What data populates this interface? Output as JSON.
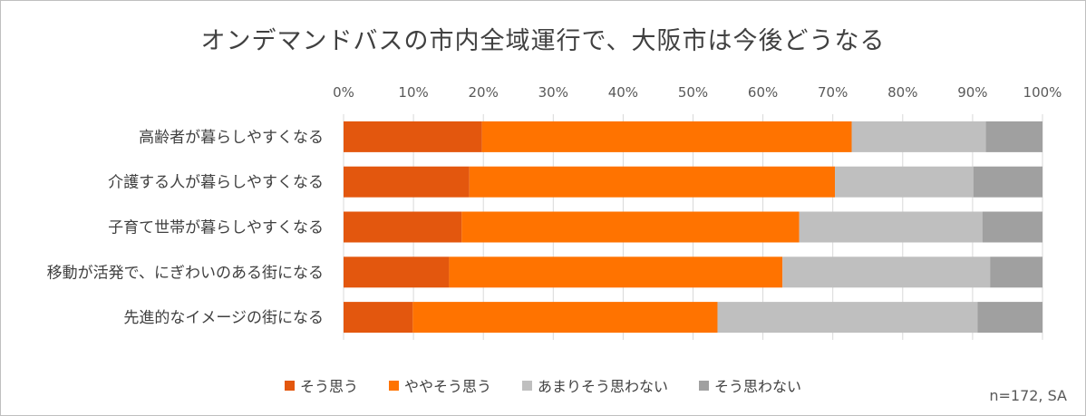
{
  "chart_data": {
    "type": "bar",
    "orientation": "horizontal",
    "stacked": true,
    "percent_axis": true,
    "title": "オンデマンドバスの市内全域運行で、大阪市は今後どうなる",
    "categories": [
      "高齢者が暮らしやすくなる",
      "介護する人が暮らしやすくなる",
      "子育て世帯が暮らしやすくなる",
      "移動が活発で、にぎわいのある街になる",
      "先進的なイメージの街になる"
    ],
    "series": [
      {
        "name": "そう思う",
        "color": "#e3570e",
        "values": [
          19.8,
          18.0,
          16.9,
          15.1,
          9.9
        ]
      },
      {
        "name": "ややそう思う",
        "color": "#ff7300",
        "values": [
          52.9,
          52.3,
          48.3,
          47.7,
          43.6
        ]
      },
      {
        "name": "あまりそう思わない",
        "color": "#bfbfbf",
        "values": [
          19.2,
          19.8,
          26.2,
          29.7,
          37.2
        ]
      },
      {
        "name": "そう思わない",
        "color": "#a0a0a0",
        "values": [
          8.1,
          9.9,
          8.6,
          7.5,
          9.3
        ]
      }
    ],
    "x_ticks": [
      "0%",
      "10%",
      "20%",
      "30%",
      "40%",
      "50%",
      "60%",
      "70%",
      "80%",
      "90%",
      "100%"
    ],
    "xlim": [
      0,
      100
    ],
    "x_axis_position": "top",
    "grid": true,
    "legend_position": "bottom",
    "note": "n=172, SA"
  }
}
